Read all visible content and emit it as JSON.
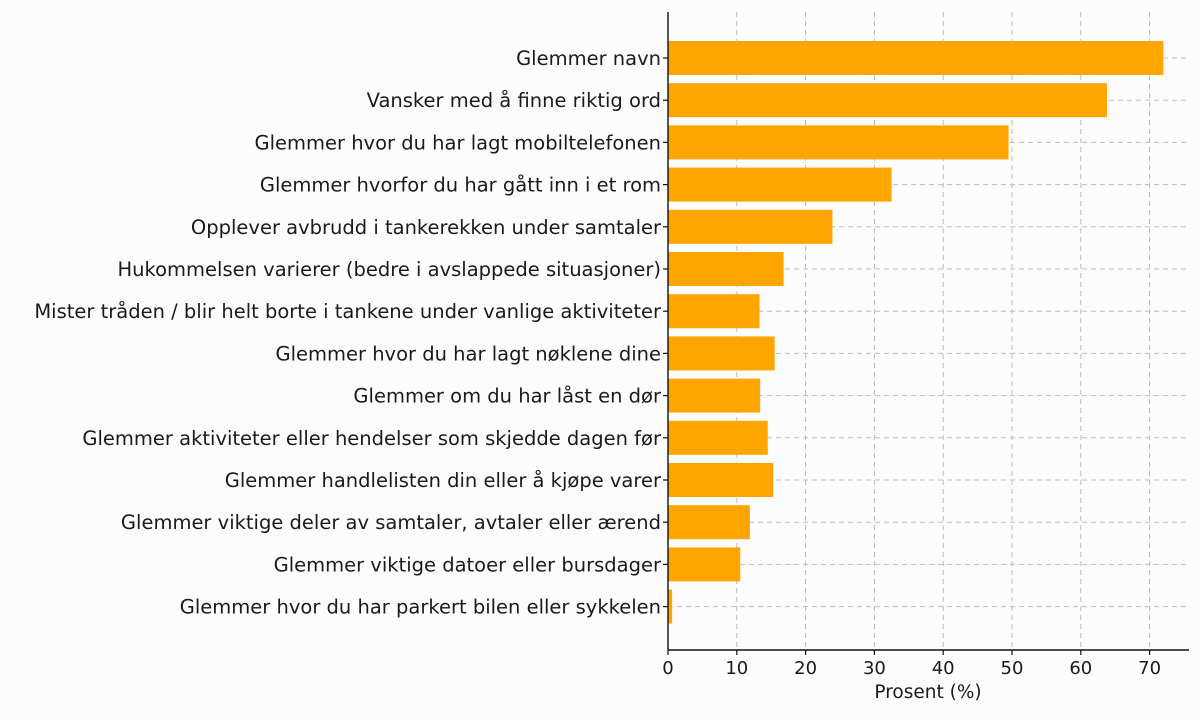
{
  "chart_data": {
    "type": "bar",
    "orientation": "horizontal",
    "title": "",
    "xlabel": "Prosent (%)",
    "ylabel": "",
    "xlim": [
      0,
      76
    ],
    "x_ticks": [
      0,
      10,
      20,
      30,
      40,
      50,
      60,
      70
    ],
    "grid": true,
    "bar_color": "#ffa500",
    "categories": [
      "Glemmer navn",
      "Vansker med å finne riktig ord",
      "Glemmer hvor du har lagt mobiltelefonen",
      "Glemmer hvorfor du har gått inn i et rom",
      "Opplever avbrudd i tankerekken under samtaler",
      "Hukommelsen varierer (bedre i avslappede situasjoner)",
      "Mister tråden / blir helt borte i tankene under vanlige aktiviteter",
      "Glemmer hvor du har lagt nøklene dine",
      "Glemmer om du har låst en dør",
      "Glemmer aktiviteter eller hendelser som skjedde dagen før",
      "Glemmer handlelisten din eller å kjøpe varer",
      "Glemmer viktige deler av samtaler, avtaler eller ærend",
      "Glemmer viktige datoer eller bursdager",
      "Glemmer hvor du har parkert bilen eller sykkelen"
    ],
    "values": [
      72,
      63.8,
      49.5,
      32.5,
      23.9,
      16.8,
      13.3,
      15.5,
      13.4,
      14.5,
      15.3,
      11.9,
      10.5,
      0.6
    ]
  }
}
